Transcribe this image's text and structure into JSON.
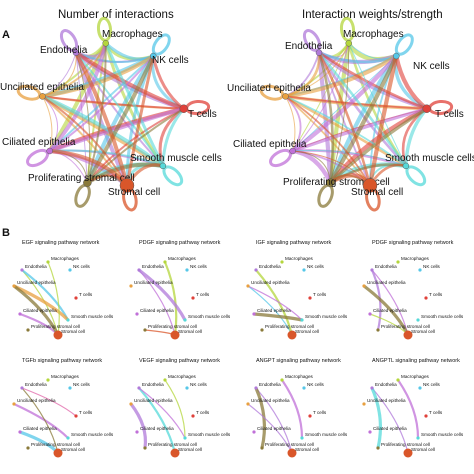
{
  "panel_labels": [
    "A",
    "B"
  ],
  "colors": {
    "endothelia": "#b07ad9",
    "macrophages": "#b4d63c",
    "nk": "#56c7e8",
    "t": "#e0413a",
    "smooth": "#56d9d9",
    "stromal": "#d9562a",
    "prolif": "#8a7a3a",
    "unciliated": "#e8a040",
    "ciliated": "#c070d8"
  },
  "big_networks": [
    {
      "title": "Number of interactions",
      "nodes": [
        {
          "key": "macrophages",
          "label": "Macrophages",
          "size": 3,
          "color": "#b4d63c"
        },
        {
          "key": "endothelia",
          "label": "Endothelia",
          "size": 3,
          "color": "#b07ad9"
        },
        {
          "key": "nk",
          "label": "NK cells",
          "size": 3,
          "color": "#56c7e8"
        },
        {
          "key": "unciliated",
          "label": "Unciliated epithelia",
          "size": 3,
          "color": "#e8a040"
        },
        {
          "key": "t",
          "label": "T cells",
          "size": 4,
          "color": "#e0413a"
        },
        {
          "key": "ciliated",
          "label": "Ciliated epithelia",
          "size": 3,
          "color": "#c070d8"
        },
        {
          "key": "smooth",
          "label": "Smooth muscle cells",
          "size": 3,
          "color": "#56d9d9"
        },
        {
          "key": "prolif",
          "label": "Proliferating stromal cell",
          "size": 4,
          "color": "#8a7a3a"
        },
        {
          "key": "stromal",
          "label": "Stromal cell",
          "size": 7,
          "color": "#d9562a"
        }
      ]
    },
    {
      "title": "Interaction weights/strength",
      "nodes": [
        {
          "key": "macrophages",
          "label": "Macrophages",
          "size": 3,
          "color": "#b4d63c"
        },
        {
          "key": "endothelia",
          "label": "Endothelia",
          "size": 3,
          "color": "#b07ad9"
        },
        {
          "key": "nk",
          "label": "NK cells",
          "size": 3,
          "color": "#56c7e8"
        },
        {
          "key": "unciliated",
          "label": "Unciliated epithelia",
          "size": 3,
          "color": "#e8a040"
        },
        {
          "key": "t",
          "label": "T cells",
          "size": 4,
          "color": "#e0413a"
        },
        {
          "key": "ciliated",
          "label": "Ciliated epithelia",
          "size": 3,
          "color": "#c070d8"
        },
        {
          "key": "smooth",
          "label": "Smooth muscle cells",
          "size": 3,
          "color": "#56d9d9"
        },
        {
          "key": "prolif",
          "label": "Proliferating stromal cell",
          "size": 4,
          "color": "#8a7a3a"
        },
        {
          "key": "stromal",
          "label": "Stromal cell",
          "size": 7,
          "color": "#d9562a"
        }
      ]
    }
  ],
  "pathways": [
    {
      "title": "EGF signaling pathway network",
      "labels": [
        "Macrophages",
        "Endothelia",
        "NK cells",
        "Unciliated epithelia",
        "T cells",
        "Ciliated epithelia",
        "Smooth muscle cells",
        "Proliferating stromal cell",
        "Stromal cell"
      ]
    },
    {
      "title": "PDGF signaling pathway network",
      "labels": [
        "Macrophages",
        "Endothelia",
        "NK cells",
        "Unciliated epithelia",
        "T cells",
        "Ciliated epithelia",
        "Smooth muscle cells",
        "Proliferating stromal cell",
        "Stromal cell"
      ]
    },
    {
      "title": "IGF signaling pathway network",
      "labels": [
        "Macrophages",
        "Endothelia",
        "NK cells",
        "Unciliated epithelia",
        "T cells",
        "Ciliated epithelia",
        "Smooth muscle cells",
        "Proliferating stromal cell",
        "Stromal cell"
      ]
    },
    {
      "title": "PDGF signaling pathway network",
      "labels": [
        "Macrophages",
        "Endothelia",
        "NK cells",
        "Unciliated epithelia",
        "T cells",
        "Ciliated epithelia",
        "Smooth muscle cells",
        "Proliferating stromal cell",
        "Stromal cell"
      ]
    },
    {
      "title": "TGFb signaling pathway network",
      "labels": [
        "Macrophages",
        "Endothelia",
        "NK cells",
        "Unciliated epithelia",
        "T cells",
        "Ciliated epithelia",
        "Smooth muscle cells",
        "Proliferating stromal cell",
        "Stromal cell"
      ]
    },
    {
      "title": "VEGF signaling pathway network",
      "labels": [
        "Macrophages",
        "Endothelia",
        "NK cells",
        "Unciliated epithelia",
        "T cells",
        "Ciliated epithelia",
        "Smooth muscle cells",
        "Proliferating stromal cell",
        "Stromal cell"
      ]
    },
    {
      "title": "ANGPT signaling pathway network",
      "labels": [
        "Macrophages",
        "Endothelia",
        "NK cells",
        "Unciliated epithelia",
        "T cells",
        "Ciliated epithelia",
        "Smooth muscle cells",
        "Proliferating stromal cell",
        "Stromal cell"
      ]
    },
    {
      "title": "ANGPTL signaling pathway network",
      "labels": [
        "Macrophages",
        "Endothelia",
        "NK cells",
        "Unciliated epithelia",
        "T cells",
        "Ciliated epithelia",
        "Smooth muscle cells",
        "Proliferating stromal cell",
        "Stromal cell"
      ]
    }
  ]
}
